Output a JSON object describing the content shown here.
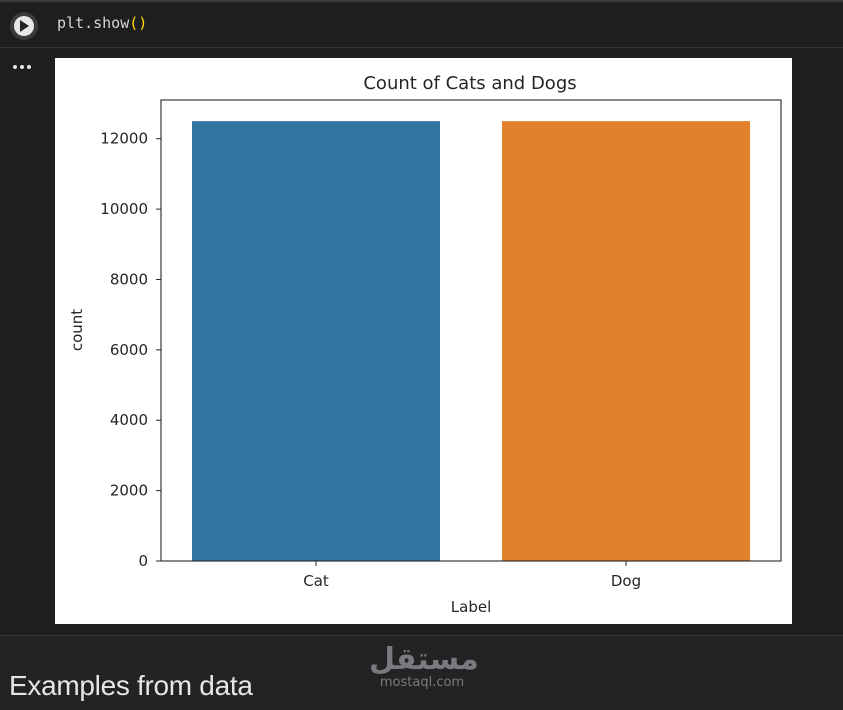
{
  "notebook": {
    "code_cell": {
      "code_prefix": "plt.show",
      "code_parens": "()",
      "run_icon": "play-icon"
    },
    "output_menu_icon": "more-horizontal-icon"
  },
  "chart_data": {
    "type": "bar",
    "title": "Count of Cats and Dogs",
    "xlabel": "Label",
    "ylabel": "count",
    "categories": [
      "Cat",
      "Dog"
    ],
    "values": [
      12500,
      12500
    ],
    "colors": [
      "#3274a1",
      "#e1812c"
    ],
    "ylim": [
      0,
      13100
    ],
    "yticks": [
      0,
      2000,
      4000,
      6000,
      8000,
      10000,
      12000
    ],
    "grid": false,
    "legend": "none"
  },
  "watermark": {
    "logo_text": "مستقل",
    "url": "mostaql.com"
  },
  "section_heading": "Examples from data"
}
